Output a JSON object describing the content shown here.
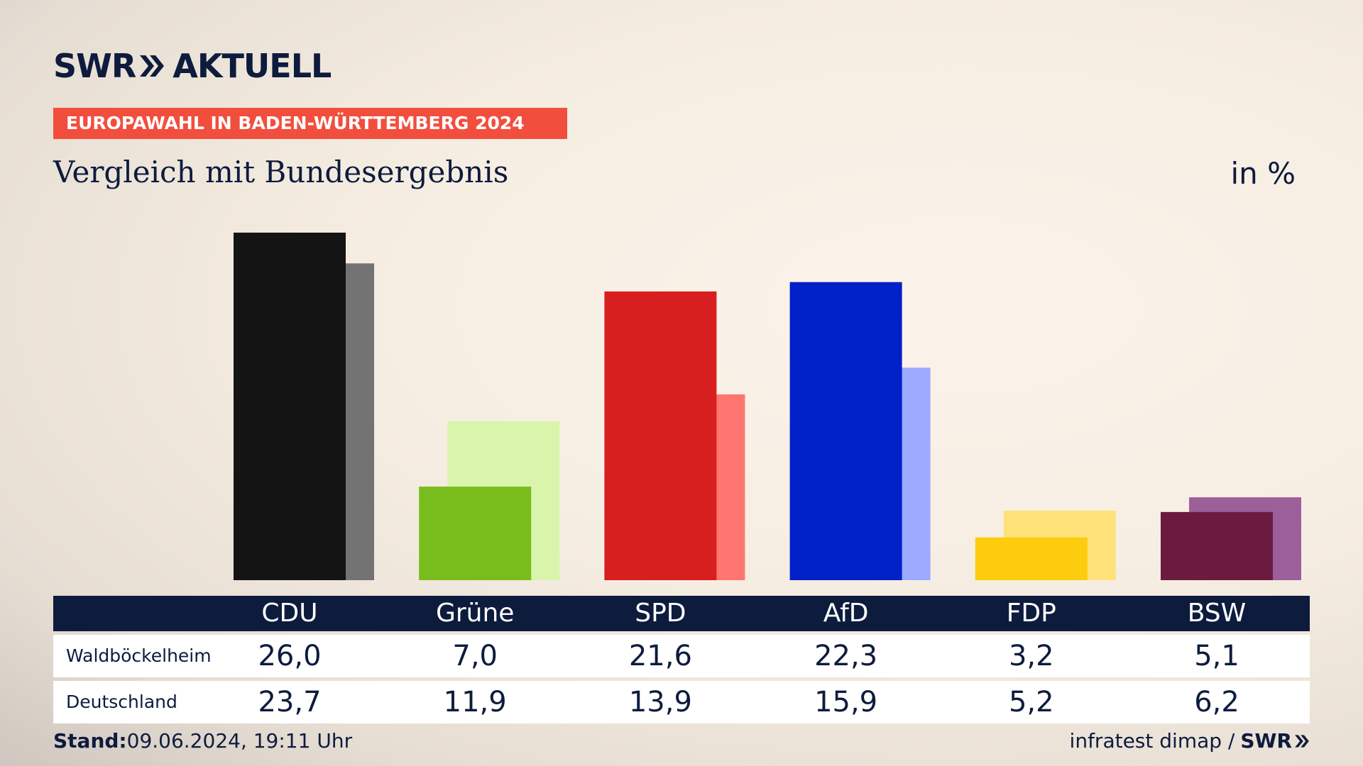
{
  "brand": {
    "swr": "SWR",
    "aktuell": "AKTUELL"
  },
  "banner": "EUROPAWAHL IN BADEN-WÜRTTEMBERG 2024",
  "subtitle": "Vergleich mit Bundesergebnis",
  "unit": "in %",
  "colors": {
    "primary": [
      "#141414",
      "#79bd1c",
      "#d81f1f",
      "#0020c8",
      "#fdcc0c",
      "#6b1b3f"
    ],
    "secondary": [
      "#737373",
      "#d8f5ab",
      "#ff7570",
      "#9eaaff",
      "#ffe17a",
      "#9c5f9a"
    ],
    "navy": "#0d1b3d",
    "banner": "#f24e3e"
  },
  "chart_data": {
    "type": "bar",
    "categories": [
      "CDU",
      "Grüne",
      "SPD",
      "AfD",
      "FDP",
      "BSW"
    ],
    "series": [
      {
        "name": "Waldböckelheim",
        "values": [
          26.0,
          7.0,
          21.6,
          22.3,
          3.2,
          5.1
        ]
      },
      {
        "name": "Deutschland",
        "values": [
          23.7,
          11.9,
          13.9,
          15.9,
          5.2,
          6.2
        ]
      }
    ],
    "ylim": [
      0,
      26.0
    ]
  },
  "table": {
    "rows": [
      {
        "label": "Waldböckelheim",
        "values": [
          "26,0",
          "7,0",
          "21,6",
          "22,3",
          "3,2",
          "5,1"
        ]
      },
      {
        "label": "Deutschland",
        "values": [
          "23,7",
          "11,9",
          "13,9",
          "15,9",
          "5,2",
          "6,2"
        ]
      }
    ]
  },
  "footer": {
    "stand_label": "Stand:",
    "stand_value": "09.06.2024, 19:11 Uhr",
    "source": "infratest dimap /",
    "source_brand": "SWR"
  }
}
